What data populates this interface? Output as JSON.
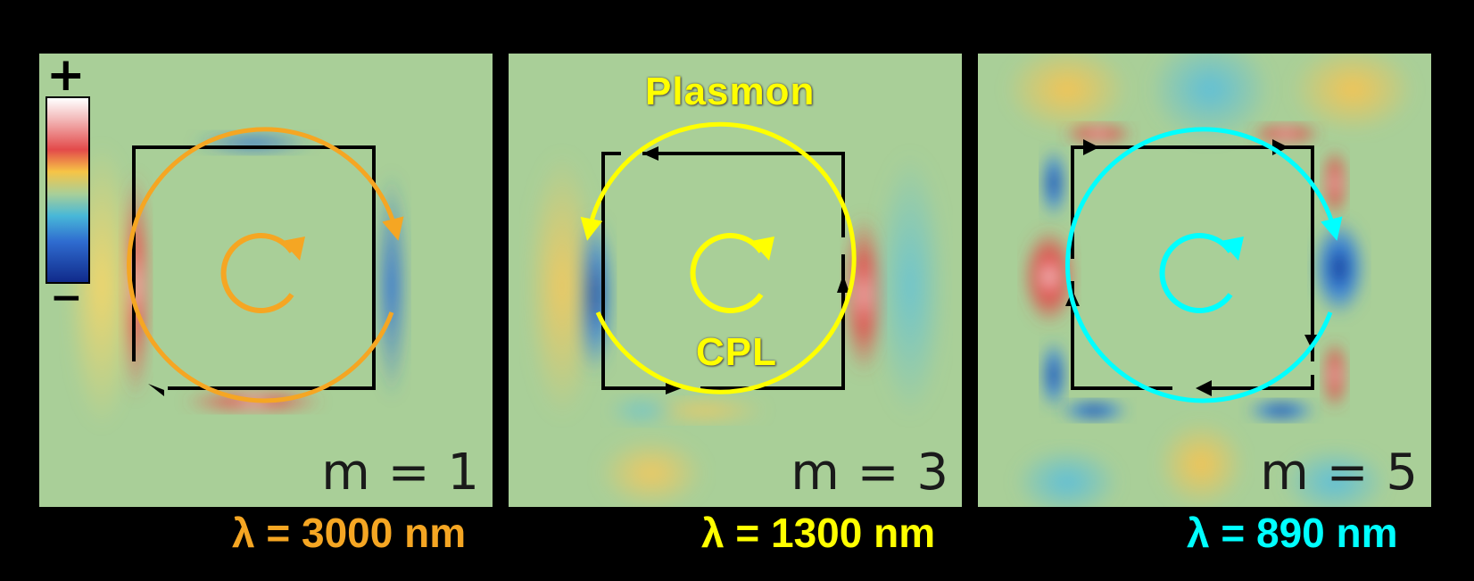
{
  "panels": [
    {
      "mode_label": "m = 1",
      "wavelength_label": "λ = 3000 nm",
      "color": "#F5A623"
    },
    {
      "mode_label": "m = 3",
      "wavelength_label": "λ = 1300 nm",
      "color": "#FFFF00"
    },
    {
      "mode_label": "m = 5",
      "wavelength_label": "λ = 890 nm",
      "color": "#00FFFF"
    }
  ],
  "annotations": {
    "plasmon": "Plasmon",
    "cpl": "CPL"
  },
  "colorbar": {
    "plus": "+",
    "minus": "−"
  }
}
